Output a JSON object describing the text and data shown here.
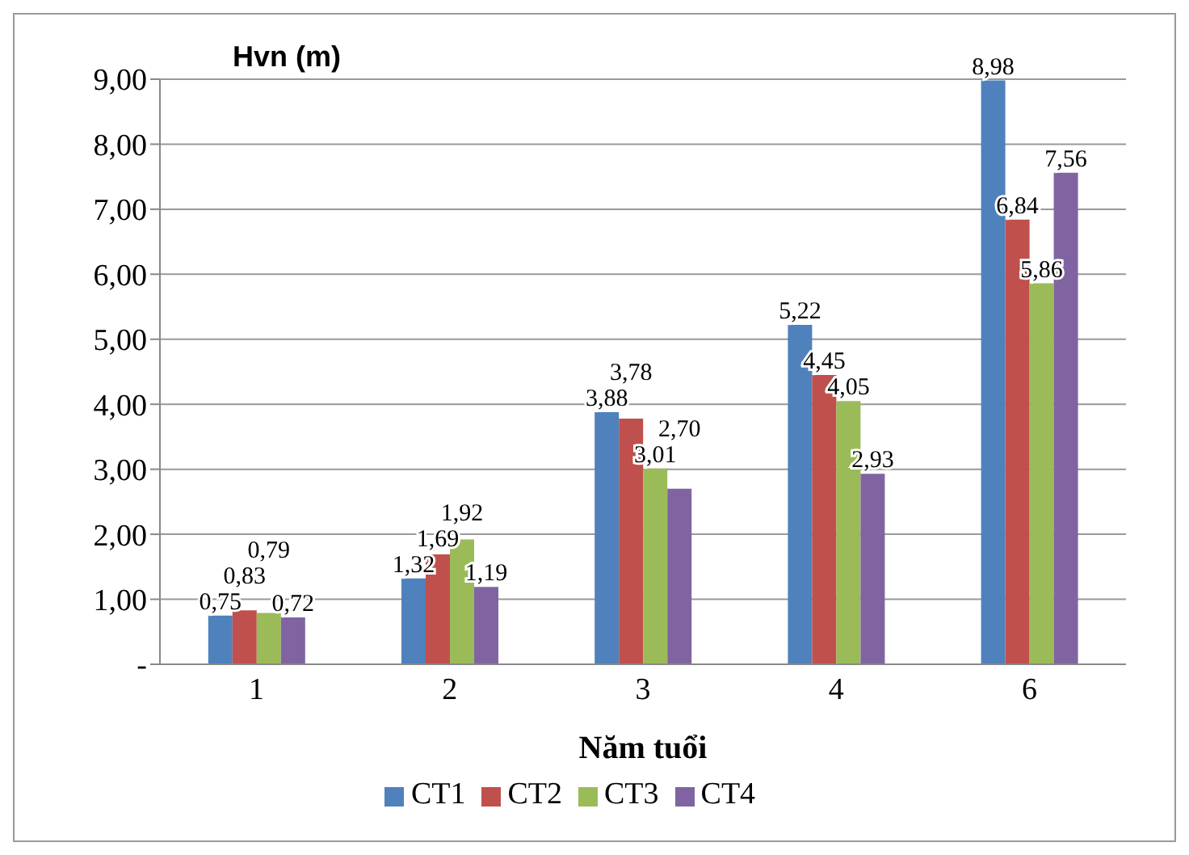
{
  "chart_data": {
    "type": "bar",
    "ylabel": "Hvn (m)",
    "xlabel": "Năm tuổi",
    "categories": [
      "1",
      "2",
      "3",
      "4",
      "6"
    ],
    "series": [
      {
        "name": "CT1",
        "color": "#4f81bd",
        "values": [
          0.75,
          1.32,
          3.88,
          5.22,
          8.98
        ],
        "value_labels": [
          "0,75",
          "1,32",
          "3,88",
          "5,22",
          "8,98"
        ]
      },
      {
        "name": "CT2",
        "color": "#c0504d",
        "values": [
          0.83,
          1.69,
          3.78,
          4.45,
          6.84
        ],
        "value_labels": [
          "0,83",
          "1,69",
          "3,78",
          "4,45",
          "6,84"
        ]
      },
      {
        "name": "CT3",
        "color": "#9bbb59",
        "values": [
          0.79,
          1.92,
          3.01,
          4.05,
          5.86
        ],
        "value_labels": [
          "0,79",
          "1,92",
          "3,01",
          "4,05",
          "5,86"
        ]
      },
      {
        "name": "CT4",
        "color": "#8064a2",
        "values": [
          0.72,
          1.19,
          2.7,
          2.93,
          7.56
        ],
        "value_labels": [
          "0,72",
          "1,19",
          "2,70",
          "2,93",
          "7,56"
        ]
      }
    ],
    "ylim": [
      0,
      9
    ],
    "yticks": [
      {
        "value": 0,
        "label": "-"
      },
      {
        "value": 1,
        "label": "1,00"
      },
      {
        "value": 2,
        "label": "2,00"
      },
      {
        "value": 3,
        "label": "3,00"
      },
      {
        "value": 4,
        "label": "4,00"
      },
      {
        "value": 5,
        "label": "5,00"
      },
      {
        "value": 6,
        "label": "6,00"
      },
      {
        "value": 7,
        "label": "7,00"
      },
      {
        "value": 8,
        "label": "8,00"
      },
      {
        "value": 9,
        "label": "9,00"
      }
    ],
    "grid": "y",
    "legend": "bottom"
  }
}
